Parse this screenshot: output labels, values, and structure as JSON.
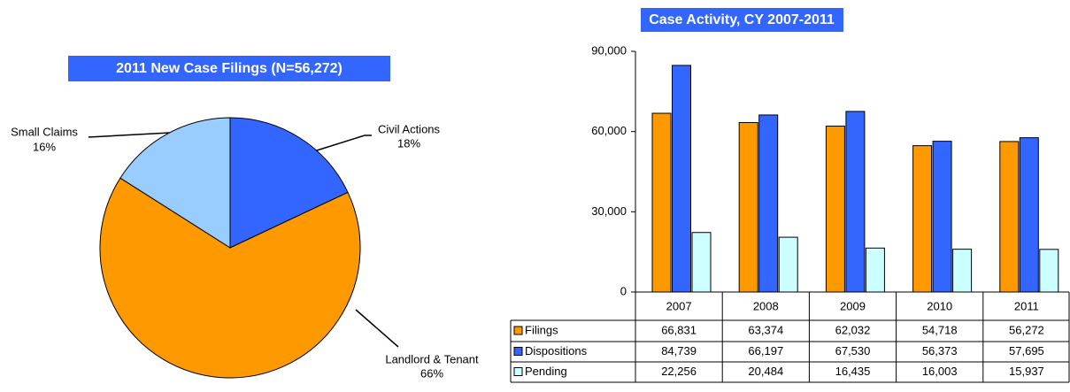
{
  "chart_data": [
    {
      "type": "pie",
      "title": "2011 New Case Filings (N=56,272)",
      "categories": [
        "Civil Actions",
        "Landlord & Tenant",
        "Small Claims"
      ],
      "values": [
        18,
        66,
        16
      ],
      "value_labels": [
        "18%",
        "66%",
        "16%"
      ],
      "colors": [
        "#3366ff",
        "#ff9900",
        "#99ccff"
      ]
    },
    {
      "type": "bar",
      "title": "Case Activity, CY 2007-2011",
      "categories": [
        "2007",
        "2008",
        "2009",
        "2010",
        "2011"
      ],
      "series": [
        {
          "name": "Filings",
          "color": "#ff9900",
          "values": [
            66831,
            63374,
            62032,
            54718,
            56272
          ],
          "value_labels": [
            "66,831",
            "63,374",
            "62,032",
            "54,718",
            "56,272"
          ]
        },
        {
          "name": "Dispositions",
          "color": "#3366ff",
          "values": [
            84739,
            66197,
            67530,
            56373,
            57695
          ],
          "value_labels": [
            "84,739",
            "66,197",
            "67,530",
            "56,373",
            "57,695"
          ]
        },
        {
          "name": "Pending",
          "color": "#ccffff",
          "values": [
            22256,
            20484,
            16435,
            16003,
            15937
          ],
          "value_labels": [
            "22,256",
            "20,484",
            "16,435",
            "16,003",
            "15,937"
          ]
        }
      ],
      "ylim": [
        0,
        90000
      ],
      "yticks": [
        0,
        {
          "value": 30000,
          "label": "30,000"
        },
        {
          "value": 60000,
          "label": "60,000"
        },
        {
          "value": 90000,
          "label": "90,000"
        }
      ]
    }
  ]
}
